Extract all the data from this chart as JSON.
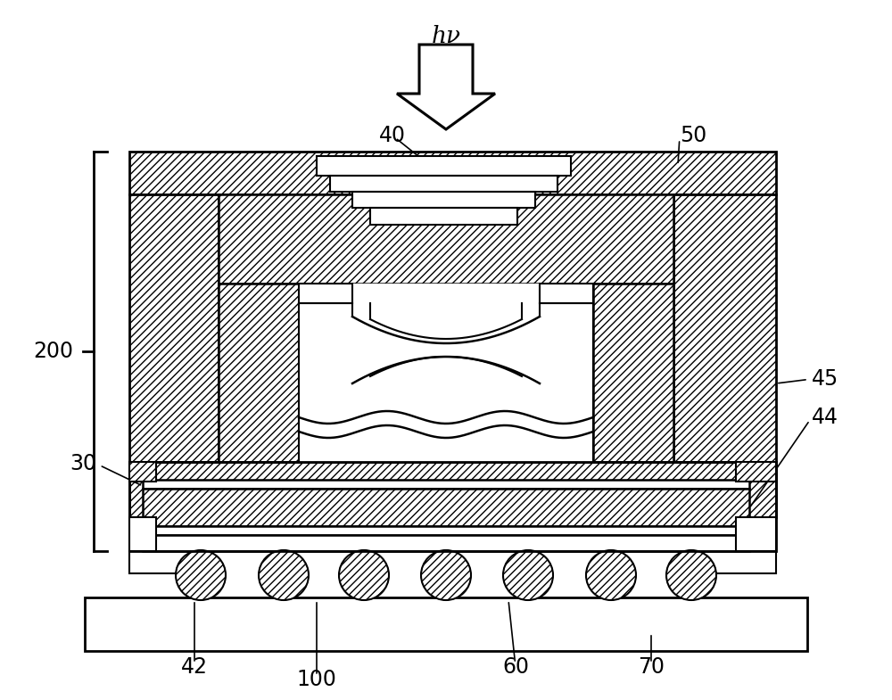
{
  "bg_color": "#ffffff",
  "line_color": "#000000",
  "figsize": [
    10.0,
    7.85
  ],
  "dpi": 100,
  "labels": {
    "hv": "hν",
    "40": "40",
    "50": "50",
    "45": "45",
    "44": "44",
    "30": "30",
    "42": "42",
    "100": "100",
    "60": "60",
    "70": "70",
    "200": "200"
  }
}
